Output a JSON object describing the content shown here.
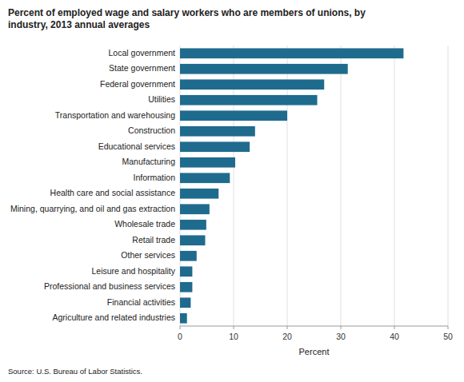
{
  "chart_data": {
    "type": "bar",
    "orientation": "horizontal",
    "title": "Percent of employed wage and salary workers who are members of unions, by\nindustry, 2013 annual averages",
    "categories": [
      "Agriculture and related industries",
      "Financial activities",
      "Professional and business services",
      "Leisure and hospitality",
      "Other services",
      "Retail trade",
      "Wholesale trade",
      "Mining, quarrying, and oil and gas extraction",
      "Health care and social assistance",
      "Information",
      "Manufacturing",
      "Educational services",
      "Construction",
      "Transportation and warehousing",
      "Utilities",
      "Federal government",
      "State government",
      "Local government"
    ],
    "values": [
      1.3,
      2.0,
      2.3,
      2.3,
      3.1,
      4.7,
      4.9,
      5.5,
      7.2,
      9.3,
      10.3,
      13.0,
      14.0,
      20.0,
      25.6,
      26.9,
      31.3,
      41.7
    ],
    "color": "#1f6b8e",
    "xlabel": "Percent",
    "source": "Source: U.S. Bureau of Labor Statistics.",
    "xlim": [
      0,
      50
    ],
    "xticks": [
      0,
      10,
      20,
      30,
      40,
      50
    ],
    "grid": true
  }
}
